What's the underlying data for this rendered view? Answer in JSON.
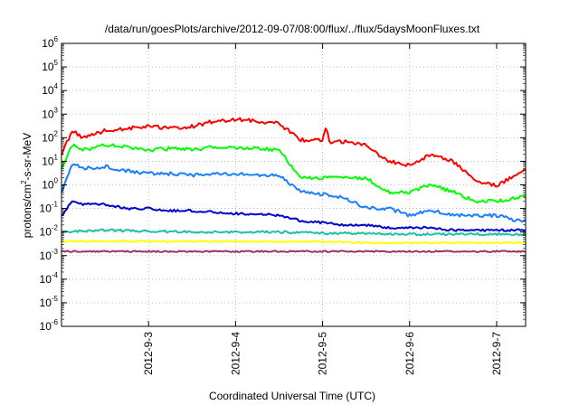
{
  "chart_data": {
    "type": "line",
    "title": "/data/run/goesPlots/archive/2012-09-07/08:00/flux/../flux/5daysMoonFluxes.txt",
    "xlabel": "Coordinated Universal Time (UTC)",
    "ylabel_parts": [
      "protons/cm",
      "2",
      "-s-sr-MeV"
    ],
    "xlim": [
      "2012-09-02T00:00",
      "2012-09-07T08:00"
    ],
    "ylim": [
      1e-06,
      1000000.0
    ],
    "yscale": "log",
    "grid": true,
    "legend": "none",
    "x_ticks": [
      "2012-9-3",
      "2012-9-4",
      "2012-9-5",
      "2012-9-6",
      "2012-9-7"
    ],
    "y_ticks": [
      {
        "base": "10",
        "exp": "-6",
        "value": 1e-06
      },
      {
        "base": "10",
        "exp": "-5",
        "value": 1e-05
      },
      {
        "base": "10",
        "exp": "-4",
        "value": 0.0001
      },
      {
        "base": "10",
        "exp": "-3",
        "value": 0.001
      },
      {
        "base": "10",
        "exp": "-2",
        "value": 0.01
      },
      {
        "base": "10",
        "exp": "-1",
        "value": 0.1
      },
      {
        "base": "10",
        "exp": "0",
        "value": 1
      },
      {
        "base": "10",
        "exp": "1",
        "value": 10
      },
      {
        "base": "10",
        "exp": "2",
        "value": 100
      },
      {
        "base": "10",
        "exp": "3",
        "value": 1000
      },
      {
        "base": "10",
        "exp": "4",
        "value": 10000
      },
      {
        "base": "10",
        "exp": "5",
        "value": 100000
      },
      {
        "base": "10",
        "exp": "6",
        "value": 1000000
      }
    ],
    "series": [
      {
        "color": "#ff0000",
        "x": [
          "2012-09-02T00:00",
          "2012-09-02T03:00",
          "2012-09-02T06:00",
          "2012-09-02T12:00",
          "2012-09-02T18:00",
          "2012-09-03T00:00",
          "2012-09-03T06:00",
          "2012-09-03T12:00",
          "2012-09-03T18:00",
          "2012-09-04T00:00",
          "2012-09-04T06:00",
          "2012-09-04T12:00",
          "2012-09-04T18:00",
          "2012-09-05T00:00",
          "2012-09-05T01:00",
          "2012-09-05T02:00",
          "2012-09-05T06:00",
          "2012-09-05T12:00",
          "2012-09-05T18:00",
          "2012-09-06T00:00",
          "2012-09-06T06:00",
          "2012-09-06T12:00",
          "2012-09-06T18:00",
          "2012-09-07T00:00",
          "2012-09-07T06:00",
          "2012-09-07T08:00"
        ],
        "y": [
          20,
          200,
          100,
          200,
          250,
          300,
          250,
          300,
          500,
          600,
          500,
          400,
          80,
          80,
          250,
          60,
          70,
          50,
          10,
          7,
          20,
          10,
          1.5,
          0.9,
          3,
          4
        ]
      },
      {
        "color": "#00ff00",
        "x": [
          "2012-09-02T00:00",
          "2012-09-02T03:00",
          "2012-09-02T06:00",
          "2012-09-02T12:00",
          "2012-09-02T18:00",
          "2012-09-03T00:00",
          "2012-09-03T06:00",
          "2012-09-03T12:00",
          "2012-09-03T18:00",
          "2012-09-04T00:00",
          "2012-09-04T06:00",
          "2012-09-04T12:00",
          "2012-09-04T18:00",
          "2012-09-05T00:00",
          "2012-09-05T06:00",
          "2012-09-05T12:00",
          "2012-09-05T18:00",
          "2012-09-06T00:00",
          "2012-09-06T06:00",
          "2012-09-06T12:00",
          "2012-09-06T18:00",
          "2012-09-07T00:00",
          "2012-09-07T06:00",
          "2012-09-07T08:00"
        ],
        "y": [
          5,
          50,
          30,
          50,
          40,
          30,
          35,
          30,
          40,
          35,
          35,
          30,
          2,
          2,
          2,
          2,
          0.5,
          0.5,
          1,
          0.5,
          0.2,
          0.2,
          0.3,
          0.3
        ]
      },
      {
        "color": "#1a7fff",
        "x": [
          "2012-09-02T00:00",
          "2012-09-02T03:00",
          "2012-09-02T06:00",
          "2012-09-02T12:00",
          "2012-09-02T18:00",
          "2012-09-03T00:00",
          "2012-09-03T06:00",
          "2012-09-03T12:00",
          "2012-09-03T18:00",
          "2012-09-04T00:00",
          "2012-09-04T06:00",
          "2012-09-04T12:00",
          "2012-09-04T18:00",
          "2012-09-05T00:00",
          "2012-09-05T06:00",
          "2012-09-05T12:00",
          "2012-09-05T18:00",
          "2012-09-06T00:00",
          "2012-09-06T06:00",
          "2012-09-06T12:00",
          "2012-09-06T18:00",
          "2012-09-07T00:00",
          "2012-09-07T06:00",
          "2012-09-07T08:00"
        ],
        "y": [
          0.5,
          8,
          5,
          6,
          4,
          3,
          3,
          2.5,
          3,
          3,
          2.5,
          2.5,
          0.5,
          0.4,
          0.3,
          0.1,
          0.1,
          0.05,
          0.08,
          0.05,
          0.05,
          0.05,
          0.03,
          0.03
        ]
      },
      {
        "color": "#0000cc",
        "x": [
          "2012-09-02T00:00",
          "2012-09-02T03:00",
          "2012-09-02T06:00",
          "2012-09-02T12:00",
          "2012-09-02T18:00",
          "2012-09-03T00:00",
          "2012-09-03T06:00",
          "2012-09-03T12:00",
          "2012-09-03T18:00",
          "2012-09-04T00:00",
          "2012-09-04T06:00",
          "2012-09-04T12:00",
          "2012-09-04T18:00",
          "2012-09-05T00:00",
          "2012-09-05T06:00",
          "2012-09-05T12:00",
          "2012-09-05T18:00",
          "2012-09-06T00:00",
          "2012-09-06T06:00",
          "2012-09-06T12:00",
          "2012-09-06T18:00",
          "2012-09-07T00:00",
          "2012-09-07T06:00",
          "2012-09-07T08:00"
        ],
        "y": [
          0.05,
          0.2,
          0.15,
          0.15,
          0.1,
          0.1,
          0.08,
          0.08,
          0.07,
          0.06,
          0.06,
          0.05,
          0.03,
          0.025,
          0.02,
          0.02,
          0.015,
          0.015,
          0.015,
          0.012,
          0.012,
          0.012,
          0.012,
          0.012
        ]
      },
      {
        "color": "#20c0a0",
        "x": [
          "2012-09-02T00:00",
          "2012-09-02T12:00",
          "2012-09-03T00:00",
          "2012-09-03T12:00",
          "2012-09-04T00:00",
          "2012-09-04T12:00",
          "2012-09-05T00:00",
          "2012-09-05T12:00",
          "2012-09-06T00:00",
          "2012-09-06T12:00",
          "2012-09-07T00:00",
          "2012-09-07T08:00"
        ],
        "y": [
          0.01,
          0.012,
          0.011,
          0.01,
          0.01,
          0.01,
          0.009,
          0.009,
          0.008,
          0.008,
          0.008,
          0.008
        ]
      },
      {
        "color": "#ffff00",
        "x": [
          "2012-09-02T00:00",
          "2012-09-02T12:00",
          "2012-09-03T00:00",
          "2012-09-03T12:00",
          "2012-09-04T00:00",
          "2012-09-04T12:00",
          "2012-09-05T00:00",
          "2012-09-05T12:00",
          "2012-09-06T00:00",
          "2012-09-06T12:00",
          "2012-09-07T00:00",
          "2012-09-07T08:00"
        ],
        "y": [
          0.004,
          0.004,
          0.004,
          0.004,
          0.004,
          0.004,
          0.004,
          0.0035,
          0.0035,
          0.0035,
          0.0035,
          0.0035
        ]
      },
      {
        "color": "#993366",
        "x": [
          "2012-09-02T00:00",
          "2012-09-02T12:00",
          "2012-09-03T00:00",
          "2012-09-03T12:00",
          "2012-09-04T00:00",
          "2012-09-04T12:00",
          "2012-09-05T00:00",
          "2012-09-05T12:00",
          "2012-09-06T00:00",
          "2012-09-06T12:00",
          "2012-09-07T00:00",
          "2012-09-07T08:00"
        ],
        "y": [
          0.0015,
          0.0015,
          0.0015,
          0.0015,
          0.0015,
          0.0015,
          0.0015,
          0.0015,
          0.0015,
          0.0015,
          0.0015,
          0.0015
        ]
      }
    ]
  }
}
